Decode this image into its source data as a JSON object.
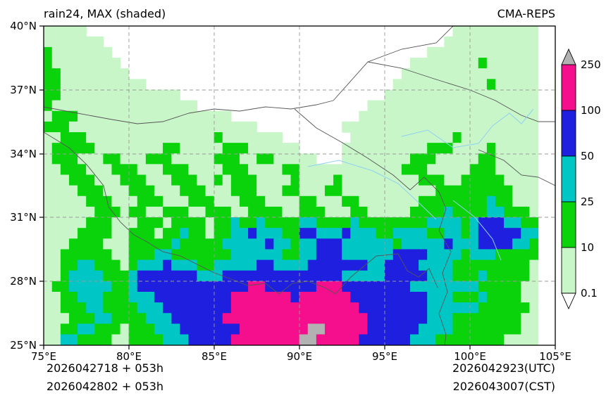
{
  "header": {
    "title": "rain24, MAX (shaded)",
    "model": "CMA-REPS"
  },
  "footer": {
    "init_line1": "2026042718 + 053h",
    "init_line2": "2026042802 + 053h",
    "valid_utc": "2026042923(UTC)",
    "valid_cst": "2026043007(CST)"
  },
  "axes": {
    "x_tick_labels": [
      "75°E",
      "80°E",
      "85°E",
      "90°E",
      "95°E",
      "100°E",
      "105°E"
    ],
    "y_tick_labels": [
      "40°N",
      "37°N",
      "34°N",
      "31°N",
      "28°N",
      "25°N"
    ]
  },
  "colorbar": {
    "labels": [
      "250",
      "100",
      "50",
      "25",
      "10",
      "0.1"
    ]
  },
  "chart_data": {
    "type": "heatmap",
    "title": "rain24, MAX (shaded)",
    "model": "CMA-REPS",
    "lon_range": [
      75,
      105
    ],
    "lat_range": [
      25,
      40
    ],
    "lon_ticks": [
      75,
      80,
      85,
      90,
      95,
      100,
      105
    ],
    "lat_ticks": [
      25,
      28,
      31,
      34,
      37,
      40
    ],
    "levels": [
      0.1,
      10,
      25,
      50,
      100,
      250
    ],
    "grid": {
      "ncols": 60,
      "nrows": 30,
      "cell_deg": 0.5,
      "origin": "top-left (75E,40N), rows southward",
      "legend": {
        "0": "<0.1",
        "1": "0.1-10",
        "2": "10-25",
        "3": "25-50",
        "4": "50-100",
        "5": "100-250",
        "6": ">250"
      },
      "palette": {
        "0": "#ffffff",
        "1": "#c9f6c9",
        "2": "#0bd30b",
        "3": "#00c6c6",
        "4": "#1f1fe0",
        "5": "#f50f8c",
        "6": "#b2b2b2"
      },
      "rows": [
        "111110000000000000000000000000000000000000000000111111111 1",
        "111111100000000000000000000000000000000000000001111111111 1",
        "211111110000000000000000000000000000000000000111111111111 1",
        "211111111000000000000000000000000000000000011111 1112111111",
        "221111111100000000000000000000000000000000111111 1111111111",
        "221111111111000000000000000000000000000001111111 1111211111",
        "221111111111111100000000000000000000000011111111 1111111111",
        "211111111111111111000000000000000000001111111111 1111111111",
        "122211111111111111111100000000000000011111111111 1111111111",
        "222111111111111111111111100000000001111111111111 1111111111",
        "112221111111111111112111111100000000111111111111 2111111111",
        "122222111111112211111222111111000001111111111222 1111211111",
        "122211122111222111112221122111110001111111122211 1112211111",
        "112221112221112221111222111122111111111111222111 1122211111",
        "111222111222111222112122211112111121111111112221 1222221111",
        "111122211122211122211122211122111221111111111122 2222222111",
        "111112221112221112221112221111221112211111112222 2222322111",
        "111111222122112221122211222211222111221111122223 2222332221",
        "111112221112221222212232232222332222322222222333 3234443322",
        "111122221122212232212233433322443334333223333223 3234444433",
        "111222211122222322222333334332334443333332333334 3334444332",
        "112222221122233222222233333322334443333334444333 3233322222",
        "112233222123334333223333344333344444443344443333 2222222221",
        "112333322234444444333444444444444443333344444333 2223222221",
        "122333332234444444444444554444445554444444433333 3332222211",
        "112233322233344444444455555554555555444444444333 2223222211",
        "112223322223334444444455555555555555544444444333 3332222221",
        "111222332222333444444555555555555555554444444333 2222222211",
        "112233222122233344444445555555566555554444443333 2222222211",
        "113322221122223334444455555555665555544444433322 2222221111"
      ]
    }
  }
}
